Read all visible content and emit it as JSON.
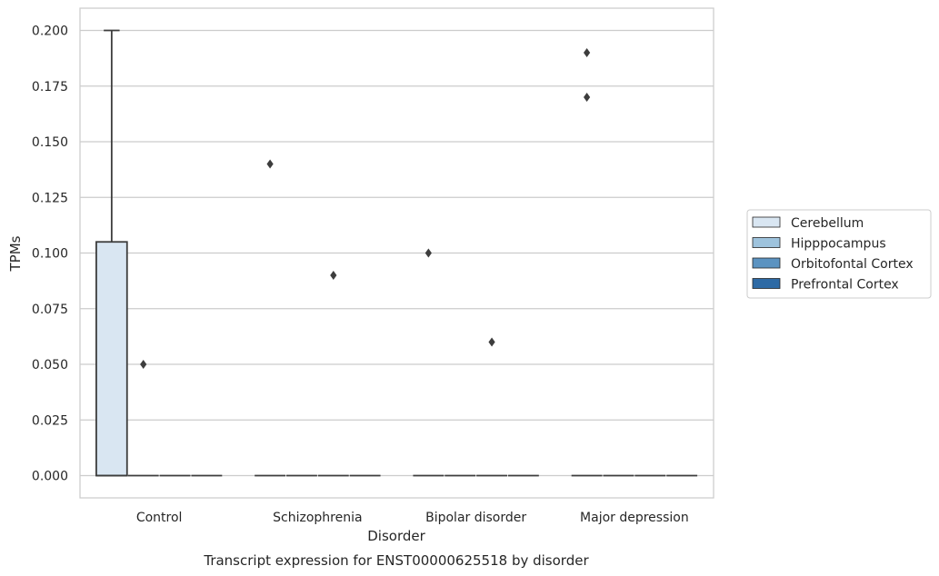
{
  "chart_data": {
    "type": "box",
    "caption": "Transcript expression for ENST00000625518 by disorder",
    "xlabel": "Disorder",
    "ylabel": "TPMs",
    "ylim": [
      -0.01,
      0.21
    ],
    "yticks": [
      0.0,
      0.025,
      0.05,
      0.075,
      0.1,
      0.125,
      0.15,
      0.175,
      0.2
    ],
    "ytick_labels": [
      "0.000",
      "0.025",
      "0.050",
      "0.075",
      "0.100",
      "0.125",
      "0.150",
      "0.175",
      "0.200"
    ],
    "grid": true,
    "legend_position": "right",
    "categories": [
      "Control",
      "Schizophrenia",
      "Bipolar disorder",
      "Major depression"
    ],
    "series": [
      {
        "name": "Cerebellum",
        "color": "#d9e6f2",
        "boxes": [
          {
            "q1": 0.0,
            "median": 0.0,
            "q3": 0.105,
            "whislo": 0.0,
            "whishi": 0.2,
            "fliers": []
          },
          {
            "q1": 0.0,
            "median": 0.0,
            "q3": 0.0,
            "whislo": 0.0,
            "whishi": 0.0,
            "fliers": [
              0.14
            ]
          },
          {
            "q1": 0.0,
            "median": 0.0,
            "q3": 0.0,
            "whislo": 0.0,
            "whishi": 0.0,
            "fliers": [
              0.1
            ]
          },
          {
            "q1": 0.0,
            "median": 0.0,
            "q3": 0.0,
            "whislo": 0.0,
            "whishi": 0.0,
            "fliers": [
              0.19,
              0.17
            ]
          }
        ]
      },
      {
        "name": "Hipppocampus",
        "color": "#9ec3dd",
        "boxes": [
          {
            "q1": 0.0,
            "median": 0.0,
            "q3": 0.0,
            "whislo": 0.0,
            "whishi": 0.0,
            "fliers": [
              0.05
            ]
          },
          {
            "q1": 0.0,
            "median": 0.0,
            "q3": 0.0,
            "whislo": 0.0,
            "whishi": 0.0,
            "fliers": []
          },
          {
            "q1": 0.0,
            "median": 0.0,
            "q3": 0.0,
            "whislo": 0.0,
            "whishi": 0.0,
            "fliers": []
          },
          {
            "q1": 0.0,
            "median": 0.0,
            "q3": 0.0,
            "whislo": 0.0,
            "whishi": 0.0,
            "fliers": []
          }
        ]
      },
      {
        "name": "Orbitofontal Cortex",
        "color": "#5b93c1",
        "boxes": [
          {
            "q1": 0.0,
            "median": 0.0,
            "q3": 0.0,
            "whislo": 0.0,
            "whishi": 0.0,
            "fliers": []
          },
          {
            "q1": 0.0,
            "median": 0.0,
            "q3": 0.0,
            "whislo": 0.0,
            "whishi": 0.0,
            "fliers": [
              0.09
            ]
          },
          {
            "q1": 0.0,
            "median": 0.0,
            "q3": 0.0,
            "whislo": 0.0,
            "whishi": 0.0,
            "fliers": [
              0.06
            ]
          },
          {
            "q1": 0.0,
            "median": 0.0,
            "q3": 0.0,
            "whislo": 0.0,
            "whishi": 0.0,
            "fliers": []
          }
        ]
      },
      {
        "name": "Prefrontal Cortex",
        "color": "#2d6aa5",
        "boxes": [
          {
            "q1": 0.0,
            "median": 0.0,
            "q3": 0.0,
            "whislo": 0.0,
            "whishi": 0.0,
            "fliers": []
          },
          {
            "q1": 0.0,
            "median": 0.0,
            "q3": 0.0,
            "whislo": 0.0,
            "whishi": 0.0,
            "fliers": []
          },
          {
            "q1": 0.0,
            "median": 0.0,
            "q3": 0.0,
            "whislo": 0.0,
            "whishi": 0.0,
            "fliers": []
          },
          {
            "q1": 0.0,
            "median": 0.0,
            "q3": 0.0,
            "whislo": 0.0,
            "whishi": 0.0,
            "fliers": []
          }
        ]
      }
    ]
  }
}
